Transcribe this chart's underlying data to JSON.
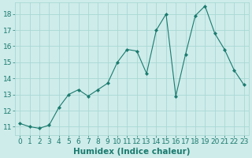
{
  "x": [
    0,
    1,
    2,
    3,
    4,
    5,
    6,
    7,
    8,
    9,
    10,
    11,
    12,
    13,
    14,
    15,
    16,
    17,
    18,
    19,
    20,
    21,
    22,
    23
  ],
  "y": [
    11.2,
    11.0,
    10.9,
    11.1,
    12.2,
    13.0,
    13.3,
    12.9,
    13.3,
    13.7,
    15.0,
    15.8,
    15.7,
    14.3,
    17.0,
    18.0,
    12.9,
    15.5,
    17.9,
    18.5,
    16.8,
    15.8,
    14.5,
    13.6
  ],
  "line_color": "#1a7a6e",
  "marker": "D",
  "marker_size": 2.2,
  "bg_color": "#ceecea",
  "grid_color": "#a8d8d4",
  "xlabel": "Humidex (Indice chaleur)",
  "xlim": [
    -0.5,
    23.5
  ],
  "ylim": [
    10.5,
    18.7
  ],
  "yticks": [
    11,
    12,
    13,
    14,
    15,
    16,
    17,
    18
  ],
  "xtick_labels": [
    "0",
    "1",
    "2",
    "3",
    "4",
    "5",
    "6",
    "7",
    "8",
    "9",
    "10",
    "11",
    "12",
    "13",
    "14",
    "15",
    "16",
    "17",
    "18",
    "19",
    "20",
    "21",
    "22",
    "23"
  ],
  "font_color": "#1a7a6e",
  "tick_font_size": 6.5,
  "label_font_size": 7.5
}
